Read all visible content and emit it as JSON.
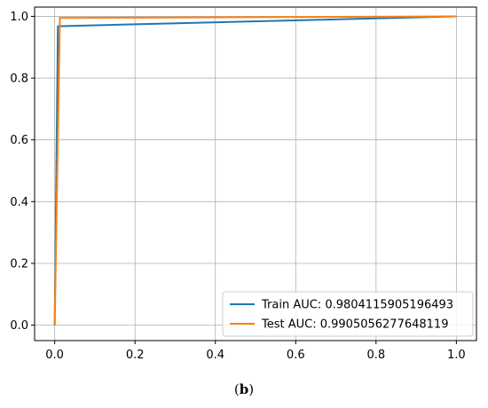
{
  "chart_data": {
    "type": "line",
    "title": "",
    "xlabel": "",
    "ylabel": "",
    "xlim": [
      -0.05,
      1.05
    ],
    "ylim": [
      -0.05,
      1.03
    ],
    "xticks": [
      0.0,
      0.2,
      0.4,
      0.6,
      0.8,
      1.0
    ],
    "xtick_labels": [
      "0.0",
      "0.2",
      "0.4",
      "0.6",
      "0.8",
      "1.0"
    ],
    "yticks": [
      0.0,
      0.2,
      0.4,
      0.6,
      0.8,
      1.0
    ],
    "ytick_labels": [
      "0.0",
      "0.2",
      "0.4",
      "0.6",
      "0.8",
      "1.0"
    ],
    "grid": true,
    "legend_position": "bottom-right",
    "series": [
      {
        "name": "Train AUC: 0.9804115905196493",
        "color": "#1f77b4",
        "x": [
          0.0,
          0.008,
          0.008,
          1.0
        ],
        "y": [
          0.0,
          0.968,
          0.968,
          1.0
        ]
      },
      {
        "name": "Test AUC: 0.9905056277648119",
        "color": "#ff7f0e",
        "x": [
          0.0,
          0.013,
          0.013,
          1.0
        ],
        "y": [
          0.0,
          0.995,
          0.995,
          1.0
        ]
      }
    ]
  },
  "caption": {
    "open": "(",
    "label": "b",
    "close": ")"
  }
}
